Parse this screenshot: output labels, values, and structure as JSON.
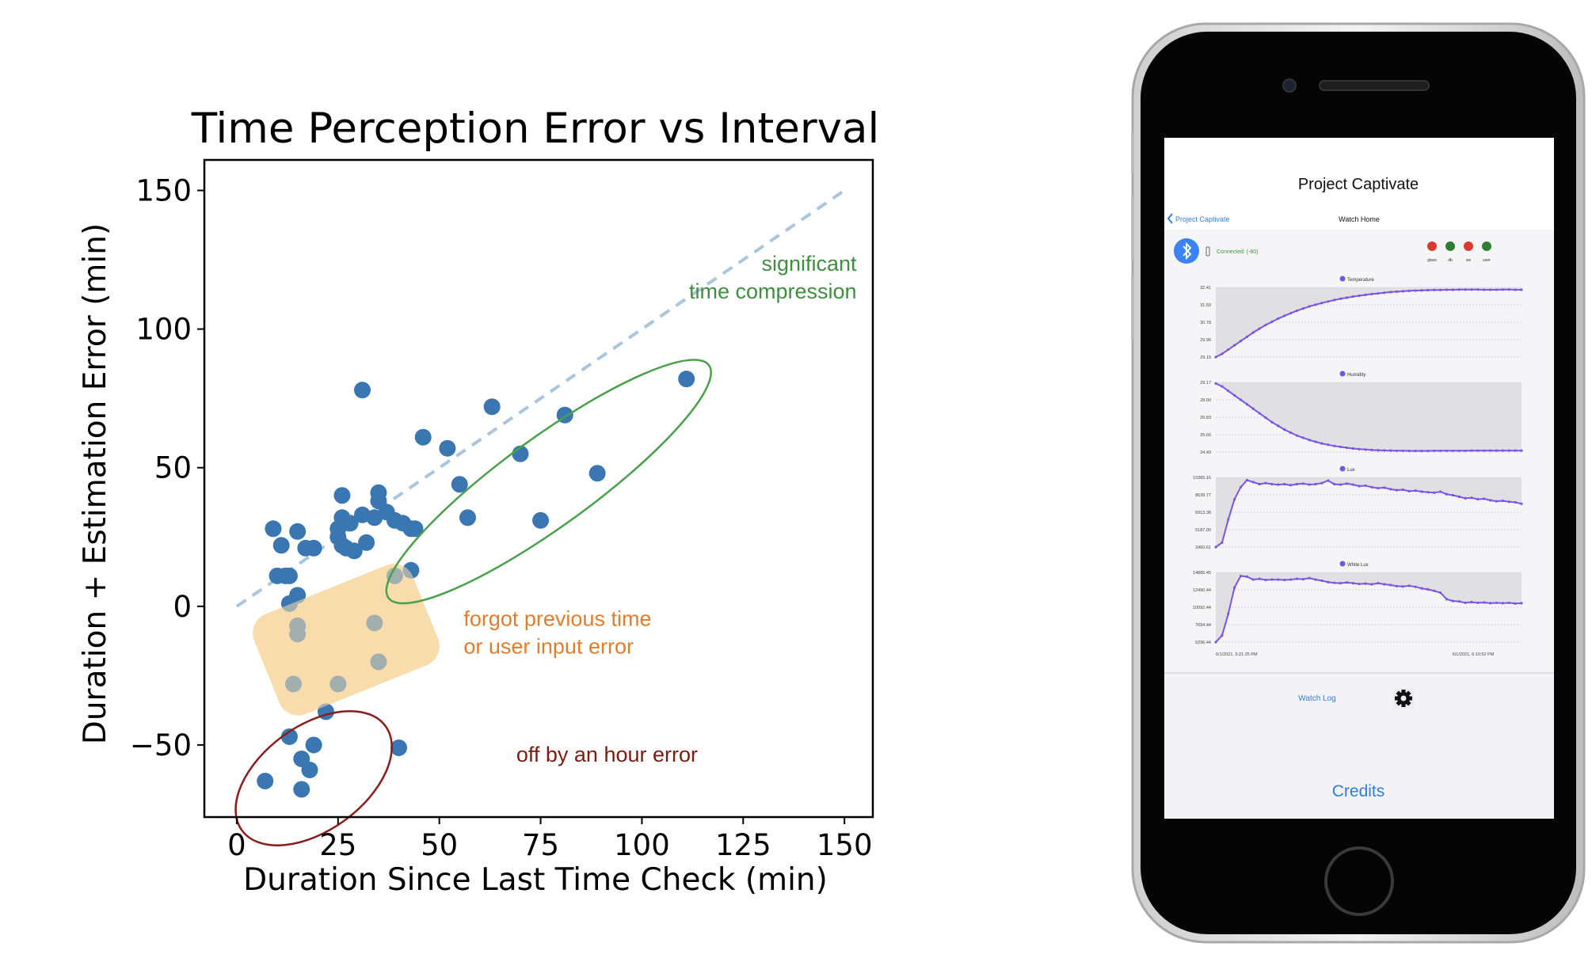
{
  "chart_data": [
    {
      "type": "scatter",
      "title": "Time Perception Error vs Interval",
      "xlabel": "Duration Since Last Time Check (min)",
      "ylabel": "Duration + Estimation Error (min)",
      "xlim": [
        -8,
        157
      ],
      "ylim": [
        -76,
        161
      ],
      "xticks": [
        0,
        25,
        50,
        75,
        100,
        125,
        150
      ],
      "yticks": [
        150,
        100,
        50,
        0,
        -50
      ],
      "xtick_labels": [
        "0",
        "25",
        "50",
        "75",
        "100",
        "125",
        "150"
      ],
      "ytick_labels": [
        "150",
        "100",
        "50",
        "0",
        "−50"
      ],
      "grid": false,
      "colors": {
        "points": "#3a76b2",
        "reference_line": "#a9c6de"
      },
      "reference_line": {
        "x": [
          0,
          150
        ],
        "y": [
          0,
          150
        ]
      },
      "points": [
        {
          "x": 9,
          "y": 28
        },
        {
          "x": 11,
          "y": 22
        },
        {
          "x": 10,
          "y": 11
        },
        {
          "x": 12,
          "y": 11
        },
        {
          "x": 13,
          "y": 11
        },
        {
          "x": 15,
          "y": 27
        },
        {
          "x": 17,
          "y": 21
        },
        {
          "x": 19,
          "y": 21
        },
        {
          "x": 13,
          "y": 1
        },
        {
          "x": 15,
          "y": 4
        },
        {
          "x": 15,
          "y": -7
        },
        {
          "x": 15,
          "y": -10
        },
        {
          "x": 14,
          "y": -28
        },
        {
          "x": 25,
          "y": -28
        },
        {
          "x": 34,
          "y": -6
        },
        {
          "x": 35,
          "y": -20
        },
        {
          "x": 31,
          "y": 78
        },
        {
          "x": 26,
          "y": 40
        },
        {
          "x": 26,
          "y": 32
        },
        {
          "x": 25,
          "y": 28
        },
        {
          "x": 25,
          "y": 25
        },
        {
          "x": 26,
          "y": 22
        },
        {
          "x": 27,
          "y": 21
        },
        {
          "x": 29,
          "y": 20
        },
        {
          "x": 28,
          "y": 30
        },
        {
          "x": 31,
          "y": 33
        },
        {
          "x": 32,
          "y": 23
        },
        {
          "x": 34,
          "y": 32
        },
        {
          "x": 35,
          "y": 41
        },
        {
          "x": 35,
          "y": 38
        },
        {
          "x": 37,
          "y": 34
        },
        {
          "x": 39,
          "y": 31
        },
        {
          "x": 41,
          "y": 30
        },
        {
          "x": 43,
          "y": 28
        },
        {
          "x": 44,
          "y": 28
        },
        {
          "x": 39,
          "y": 11
        },
        {
          "x": 43,
          "y": 13
        },
        {
          "x": 46,
          "y": 61
        },
        {
          "x": 52,
          "y": 57
        },
        {
          "x": 55,
          "y": 44
        },
        {
          "x": 57,
          "y": 32
        },
        {
          "x": 63,
          "y": 72
        },
        {
          "x": 70,
          "y": 55
        },
        {
          "x": 75,
          "y": 31
        },
        {
          "x": 81,
          "y": 69
        },
        {
          "x": 89,
          "y": 48
        },
        {
          "x": 111,
          "y": 82
        },
        {
          "x": 22,
          "y": -38
        },
        {
          "x": 13,
          "y": -47
        },
        {
          "x": 19,
          "y": -50
        },
        {
          "x": 16,
          "y": -55
        },
        {
          "x": 18,
          "y": -59
        },
        {
          "x": 7,
          "y": -63
        },
        {
          "x": 16,
          "y": -66
        },
        {
          "x": 40,
          "y": -51
        }
      ],
      "annotations": [
        {
          "text": "significant\ntime compression",
          "color": "#3f8e3f",
          "x": 153,
          "y": 121
        },
        {
          "text": "forgot previous time\nor user input error",
          "color": "#e07c2e",
          "x": 56,
          "y": -7
        },
        {
          "text": "off by an hour error",
          "color": "#7a1d10",
          "x": 69,
          "y": -56
        }
      ],
      "regions": [
        {
          "name": "time-compression",
          "shape": "ellipse",
          "stroke": "#4aa04a",
          "center": [
            77,
            45
          ]
        },
        {
          "name": "input-error",
          "shape": "rounded-box",
          "fill": "#f9dcab",
          "center": [
            27,
            -12
          ]
        },
        {
          "name": "hour-error",
          "shape": "ellipse",
          "stroke": "#8a1c1c",
          "center": [
            19,
            -62
          ]
        }
      ]
    },
    {
      "type": "line",
      "charts": [
        {
          "title": "Temperature",
          "yticks": [
            "32.41",
            "31.59",
            "30.78",
            "29.96",
            "29.15"
          ],
          "ylim": [
            29.15,
            32.41
          ],
          "values": [
            29.15,
            29.3,
            29.5,
            29.7,
            29.9,
            30.1,
            30.3,
            30.48,
            30.65,
            30.8,
            30.95,
            31.08,
            31.2,
            31.32,
            31.42,
            31.52,
            31.6,
            31.68,
            31.75,
            31.82,
            31.88,
            31.93,
            31.98,
            32.02,
            32.06,
            32.1,
            32.13,
            32.16,
            32.19,
            32.21,
            32.23,
            32.25,
            32.26,
            32.27,
            32.28,
            32.29,
            32.29,
            32.3,
            32.3,
            32.31,
            32.31,
            32.31,
            32.31,
            32.3,
            32.3,
            32.3,
            32.31,
            32.31,
            32.3,
            32.3
          ]
        },
        {
          "title": "Humidity",
          "yticks": [
            "29.17",
            "28.00",
            "26.83",
            "25.66",
            "24.49"
          ],
          "ylim": [
            24.49,
            29.17
          ],
          "values": [
            29.1,
            28.9,
            28.6,
            28.3,
            28.0,
            27.7,
            27.4,
            27.1,
            26.8,
            26.5,
            26.25,
            26.0,
            25.8,
            25.6,
            25.45,
            25.3,
            25.18,
            25.07,
            24.98,
            24.9,
            24.84,
            24.78,
            24.73,
            24.69,
            24.66,
            24.63,
            24.61,
            24.6,
            24.59,
            24.58,
            24.58,
            24.57,
            24.57,
            24.57,
            24.57,
            24.58,
            24.58,
            24.58,
            24.58,
            24.58,
            24.58,
            24.59,
            24.59,
            24.59,
            24.59,
            24.59,
            24.59,
            24.59,
            24.59,
            24.59
          ]
        },
        {
          "title": "Lux",
          "yticks": [
            "10365.16",
            "8639.77",
            "6913.38",
            "5187.00",
            "3460.61"
          ],
          "ylim": [
            3460.61,
            10365.16
          ],
          "values": [
            3460,
            3900,
            6200,
            8200,
            9400,
            10100,
            9900,
            9700,
            9800,
            9700,
            9650,
            9700,
            9600,
            9700,
            9750,
            9650,
            9700,
            9800,
            10050,
            9700,
            9650,
            9750,
            9650,
            9500,
            9550,
            9400,
            9300,
            9350,
            9200,
            9100,
            9150,
            9000,
            9050,
            8950,
            8900,
            8850,
            8950,
            8700,
            8600,
            8450,
            8300,
            8350,
            8200,
            8250,
            8100,
            8000,
            8050,
            7950,
            7900,
            7750
          ]
        },
        {
          "title": "White Lux",
          "yticks": [
            "14886.45",
            "12490.44",
            "10092.44",
            "7694.44",
            "5296.44"
          ],
          "ylim": [
            5296.44,
            14886.45
          ],
          "values": [
            5296,
            6200,
            9200,
            12800,
            14400,
            14300,
            13900,
            14000,
            13850,
            13900,
            13900,
            13850,
            13900,
            14000,
            13950,
            14100,
            13900,
            13750,
            13550,
            13450,
            13400,
            13500,
            13400,
            13300,
            13350,
            13250,
            13400,
            13250,
            13150,
            13000,
            12950,
            13050,
            12900,
            12700,
            12550,
            12350,
            12100,
            11200,
            10950,
            10900,
            10700,
            10800,
            10700,
            10750,
            10650,
            10700,
            10650,
            10700,
            10600,
            10650
          ]
        }
      ],
      "x_start_label": "6/1/2021, 5:21:25 PM",
      "x_end_label": "6/1/2021, 6:10:52 PM",
      "colors": {
        "line": "#7b54e6",
        "fill": "#dcdcde"
      }
    }
  ],
  "phone": {
    "nav_title": "Project Captivate",
    "back_label": "Project Captivate",
    "watch_title": "Watch Home",
    "status_text": "Connected: (-80)",
    "status_dots": [
      {
        "label": "glass",
        "color": "#d93a2f"
      },
      {
        "label": "db",
        "color": "#2e7d32"
      },
      {
        "label": "ws",
        "color": "#d93a2f"
      },
      {
        "label": "user",
        "color": "#2e7d32"
      }
    ],
    "watch_log_label": "Watch Log",
    "credits_label": "Credits",
    "icons": {
      "bluetooth": "bluetooth-icon",
      "settings": "gear-icon",
      "back": "chevron-left-icon",
      "battery": "battery-icon"
    },
    "accent_color": "#2f7ed8"
  }
}
